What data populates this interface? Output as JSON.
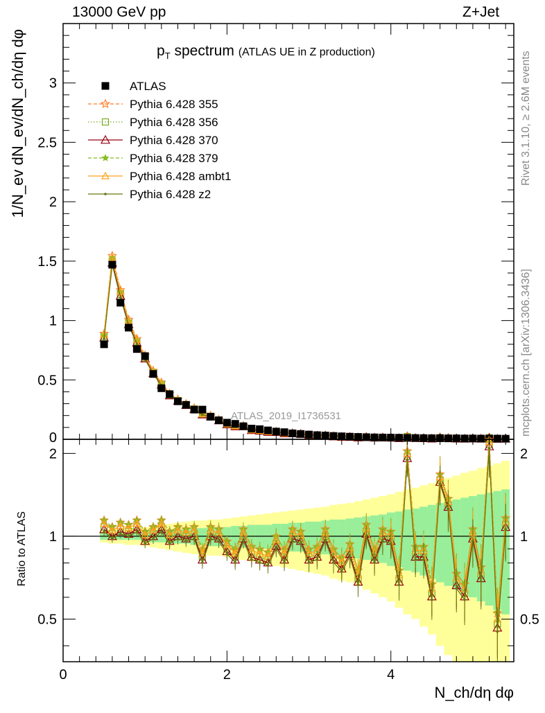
{
  "header": {
    "left": "13000 GeV pp",
    "right": "Z+Jet"
  },
  "side_labels": {
    "rivet": "Rivet 3.1.10, ≥ 2.6M events",
    "mcplots": "mcplots.cern.ch [arXiv:1306.3436]"
  },
  "watermark": "ATLAS_2019_I1736531",
  "chart_data": {
    "type": "line",
    "title_main": "p",
    "title_sub": "T",
    "title_word": "spectrum",
    "title_suffix": "(ATLAS UE in Z production)",
    "ylabel": "1/N_ev dN_ev/dN_ch/dη dφ",
    "ylabel_ratio": "Ratio to ATLAS",
    "xlabel": "N_ch/dη dφ",
    "xlim": [
      0,
      5.5
    ],
    "ylim": [
      0,
      3.5
    ],
    "ratio_ylim": [
      0.35,
      2.25
    ],
    "x_ticks": [
      "0",
      "2",
      "4"
    ],
    "y_ticks": [
      "0",
      "0.5",
      "1",
      "1.5",
      "2",
      "2.5",
      "3"
    ],
    "ratio_ticks": [
      "0.5",
      "1",
      "2"
    ],
    "x": [
      0.5,
      0.6,
      0.7,
      0.8,
      0.9,
      1.0,
      1.1,
      1.2,
      1.3,
      1.4,
      1.5,
      1.6,
      1.7,
      1.8,
      1.9,
      2.0,
      2.1,
      2.2,
      2.3,
      2.4,
      2.5,
      2.6,
      2.7,
      2.8,
      2.9,
      3.0,
      3.1,
      3.2,
      3.3,
      3.4,
      3.5,
      3.6,
      3.7,
      3.8,
      3.9,
      4.0,
      4.1,
      4.2,
      4.3,
      4.4,
      4.5,
      4.6,
      4.7,
      4.8,
      4.9,
      5.0,
      5.1,
      5.2,
      5.3,
      5.4
    ],
    "data": [
      0.8,
      1.47,
      1.15,
      0.94,
      0.76,
      0.7,
      0.55,
      0.43,
      0.38,
      0.32,
      0.29,
      0.25,
      0.25,
      0.19,
      0.16,
      0.14,
      0.13,
      0.11,
      0.09,
      0.085,
      0.075,
      0.065,
      0.06,
      0.05,
      0.045,
      0.04,
      0.035,
      0.032,
      0.028,
      0.025,
      0.022,
      0.02,
      0.018,
      0.016,
      0.015,
      0.014,
      0.013,
      0.012,
      0.011,
      0.01,
      0.009,
      0.009,
      0.008,
      0.008,
      0.007,
      0.007,
      0.006,
      0.006,
      0.006,
      0.005
    ],
    "band_green": [
      0.03,
      0.03,
      0.03,
      0.03,
      0.03,
      0.04,
      0.05,
      0.05,
      0.06,
      0.06,
      0.06,
      0.07,
      0.07,
      0.08,
      0.08,
      0.08,
      0.09,
      0.09,
      0.1,
      0.1,
      0.1,
      0.11,
      0.11,
      0.12,
      0.12,
      0.13,
      0.13,
      0.14,
      0.15,
      0.15,
      0.16,
      0.17,
      0.18,
      0.19,
      0.2,
      0.22,
      0.23,
      0.25,
      0.26,
      0.28,
      0.3,
      0.32,
      0.34,
      0.36,
      0.38,
      0.4,
      0.42,
      0.44,
      0.46,
      0.48
    ],
    "band_yellow": [
      0.05,
      0.06,
      0.06,
      0.07,
      0.07,
      0.08,
      0.09,
      0.1,
      0.11,
      0.12,
      0.13,
      0.14,
      0.14,
      0.15,
      0.15,
      0.16,
      0.17,
      0.18,
      0.19,
      0.2,
      0.21,
      0.22,
      0.23,
      0.24,
      0.25,
      0.26,
      0.27,
      0.28,
      0.3,
      0.31,
      0.32,
      0.34,
      0.36,
      0.38,
      0.4,
      0.42,
      0.45,
      0.48,
      0.5,
      0.53,
      0.56,
      0.6,
      0.63,
      0.66,
      0.7,
      0.73,
      0.77,
      0.8,
      0.84,
      0.88
    ],
    "ratio_base": [
      1.08,
      1.02,
      1.06,
      1.04,
      1.08,
      0.98,
      1.02,
      1.08,
      0.98,
      1.02,
      1.0,
      1.02,
      0.84,
      1.02,
      1.0,
      0.9,
      0.84,
      1.0,
      0.86,
      0.84,
      0.82,
      0.94,
      0.84,
      1.0,
      0.98,
      0.84,
      0.86,
      1.0,
      0.84,
      0.78,
      0.88,
      0.7,
      1.04,
      0.84,
      1.0,
      0.98,
      0.7,
      1.95,
      0.86,
      0.86,
      0.62,
      1.6,
      1.3,
      0.68,
      0.62,
      1.0,
      0.72,
      2.15,
      0.48,
      1.1
    ],
    "series": [
      {
        "name": "ATLAS",
        "color": "#000000",
        "marker": "square",
        "dash": ""
      },
      {
        "name": "Pythia 6.428 355",
        "color": "#ff7a22",
        "marker": "star",
        "dash": "5,3",
        "offset": 0.03,
        "mult": 1.03
      },
      {
        "name": "Pythia 6.428 356",
        "color": "#77aa22",
        "marker": "opensquare",
        "dash": "1.5,2.5",
        "offset": 0.0,
        "mult": 1.0
      },
      {
        "name": "Pythia 6.428 370",
        "color": "#990011",
        "marker": "triangle",
        "dash": "",
        "offset": -0.01,
        "mult": 0.99
      },
      {
        "name": "Pythia 6.428 379",
        "color": "#88bb22",
        "marker": "smallstar",
        "dash": "5,3",
        "offset": 0.04,
        "mult": 1.02
      },
      {
        "name": "Pythia 6.428 ambt1",
        "color": "#ffa21a",
        "marker": "opentriangle",
        "dash": "",
        "offset": 0.01,
        "mult": 1.02
      },
      {
        "name": "Pythia 6.428 z2",
        "color": "#667711",
        "marker": "dot",
        "dash": "",
        "offset": -0.02,
        "mult": 0.98
      }
    ]
  }
}
